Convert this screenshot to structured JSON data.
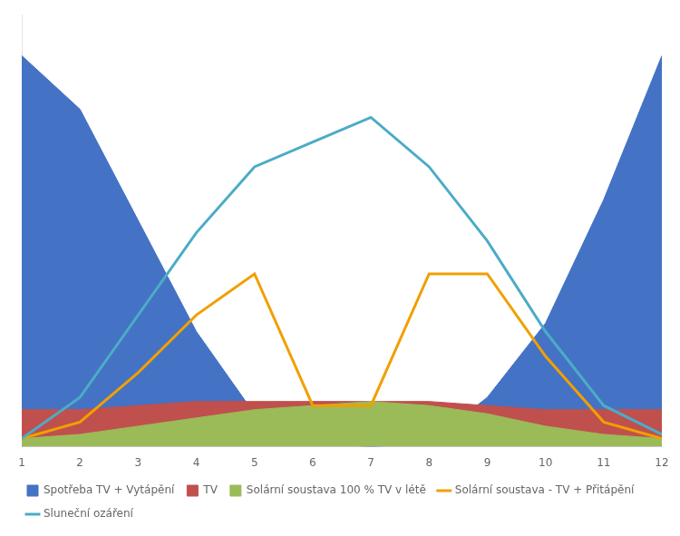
{
  "chart_data": {
    "type": "area",
    "x": [
      1,
      2,
      3,
      4,
      5,
      6,
      7,
      8,
      9,
      10,
      11,
      12
    ],
    "xlim": [
      1,
      12
    ],
    "xticks": [
      1,
      2,
      3,
      4,
      5,
      6,
      7,
      8,
      9,
      10,
      11,
      12
    ],
    "ylim": [
      0,
      105
    ],
    "tick_labels": "x",
    "grid": false,
    "legend": "bottom",
    "series": [
      {
        "name": "Spotřeba TV + Vytápění",
        "type": "area",
        "color": "#4472C4",
        "values": [
          95,
          82,
          55,
          28,
          8,
          1,
          0,
          1,
          12,
          30,
          60,
          95
        ]
      },
      {
        "name": "TV",
        "type": "area",
        "color": "#C0504D",
        "values": [
          9,
          9,
          10,
          11,
          11,
          11,
          11,
          11,
          10,
          9,
          9,
          9
        ]
      },
      {
        "name": "Solární soustava 100 % TV v létě",
        "type": "area",
        "color": "#9BBB59",
        "values": [
          2,
          3,
          5,
          7,
          9,
          10,
          11,
          10,
          8,
          5,
          3,
          2
        ]
      },
      {
        "name": "Solární soustava - TV + Přitápění",
        "type": "line",
        "color": "#F0A000",
        "values": [
          2,
          6,
          18,
          32,
          42,
          10,
          10,
          42,
          42,
          22,
          6,
          2
        ]
      },
      {
        "name": "Sluneční ozáření",
        "type": "line",
        "color": "#4BACC6",
        "values": [
          2,
          12,
          32,
          52,
          68,
          74,
          80,
          68,
          50,
          28,
          10,
          3
        ]
      }
    ]
  }
}
